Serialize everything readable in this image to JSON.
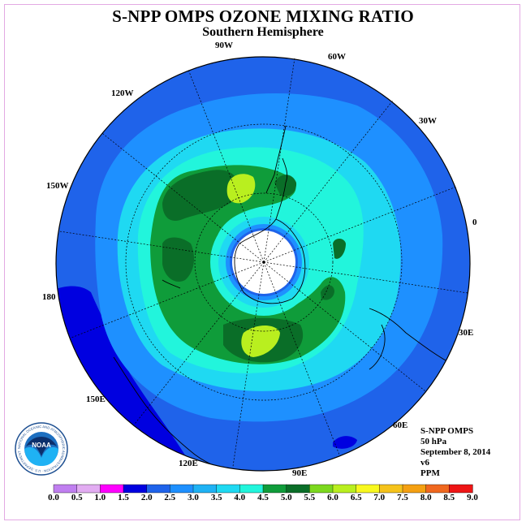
{
  "title": "S-NPP OMPS OZONE MIXING RATIO",
  "subtitle": "Southern Hemisphere",
  "longitude_labels": [
    "90W",
    "60W",
    "120W",
    "30W",
    "150W",
    "0",
    "180",
    "30E",
    "150E",
    "60E",
    "120E",
    "90E"
  ],
  "info": {
    "instrument": "S-NPP OMPS",
    "level": "50 hPa",
    "date": "September 8, 2014",
    "version": "v6",
    "units": "PPM"
  },
  "logo": {
    "text": "NOAA",
    "ring_text": "NATIONAL OCEANIC AND ATMOSPHERIC ADMINISTRATION · U.S. DEPARTMENT OF COMMERCE"
  },
  "colorbar": {
    "ticks": [
      "0.0",
      "0.5",
      "1.0",
      "1.5",
      "2.0",
      "2.5",
      "3.0",
      "3.5",
      "4.0",
      "4.5",
      "5.0",
      "5.5",
      "6.0",
      "6.5",
      "7.0",
      "7.5",
      "8.0",
      "8.5",
      "9.0"
    ],
    "colors": [
      "#c07ff0",
      "#e2acf2",
      "#ff00ff",
      "#0000e0",
      "#1f63ea",
      "#1e90ff",
      "#1fb2f4",
      "#1fd9f2",
      "#22f5dc",
      "#0f9c3a",
      "#0a6e28",
      "#7cd81e",
      "#b9ef1f",
      "#f8f81f",
      "#f5c31b",
      "#f4a012",
      "#f0681f",
      "#ee1515",
      "#7f4d33"
    ]
  },
  "colors": {
    "c2_0": "#0000e0",
    "c2_5": "#1f63ea",
    "c3_0": "#1e90ff",
    "c3_5": "#1fd9f2",
    "c4_0": "#22f5dc",
    "c4_5": "#0f9c3a",
    "c5_0": "#0a6e28",
    "c5_5": "#b9ef1f",
    "pole": "#ffffff"
  }
}
